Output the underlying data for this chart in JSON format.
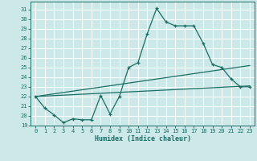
{
  "title": "",
  "xlabel": "Humidex (Indice chaleur)",
  "ylabel": "",
  "background_color": "#cce8e8",
  "grid_color": "#ffffff",
  "line_color": "#1a6e64",
  "xlim": [
    -0.5,
    23.5
  ],
  "ylim": [
    19,
    31.8
  ],
  "yticks": [
    19,
    20,
    21,
    22,
    23,
    24,
    25,
    26,
    27,
    28,
    29,
    30,
    31
  ],
  "xticks": [
    0,
    1,
    2,
    3,
    4,
    5,
    6,
    7,
    8,
    9,
    10,
    11,
    12,
    13,
    14,
    15,
    16,
    17,
    18,
    19,
    20,
    21,
    22,
    23
  ],
  "line1_x": [
    0,
    1,
    2,
    3,
    4,
    5,
    6,
    7,
    8,
    9,
    10,
    11,
    12,
    13,
    14,
    15,
    16,
    17,
    18,
    19,
    20,
    21,
    22,
    23
  ],
  "line1_y": [
    22.0,
    20.8,
    20.1,
    19.3,
    19.7,
    19.6,
    19.6,
    22.1,
    20.2,
    22.0,
    25.0,
    25.5,
    28.5,
    31.1,
    29.7,
    29.3,
    29.3,
    29.3,
    27.5,
    25.3,
    25.0,
    23.8,
    23.0,
    23.0
  ],
  "line2_x": [
    0,
    23
  ],
  "line2_y": [
    22.0,
    23.1
  ],
  "line3_x": [
    0,
    23
  ],
  "line3_y": [
    22.0,
    25.2
  ]
}
